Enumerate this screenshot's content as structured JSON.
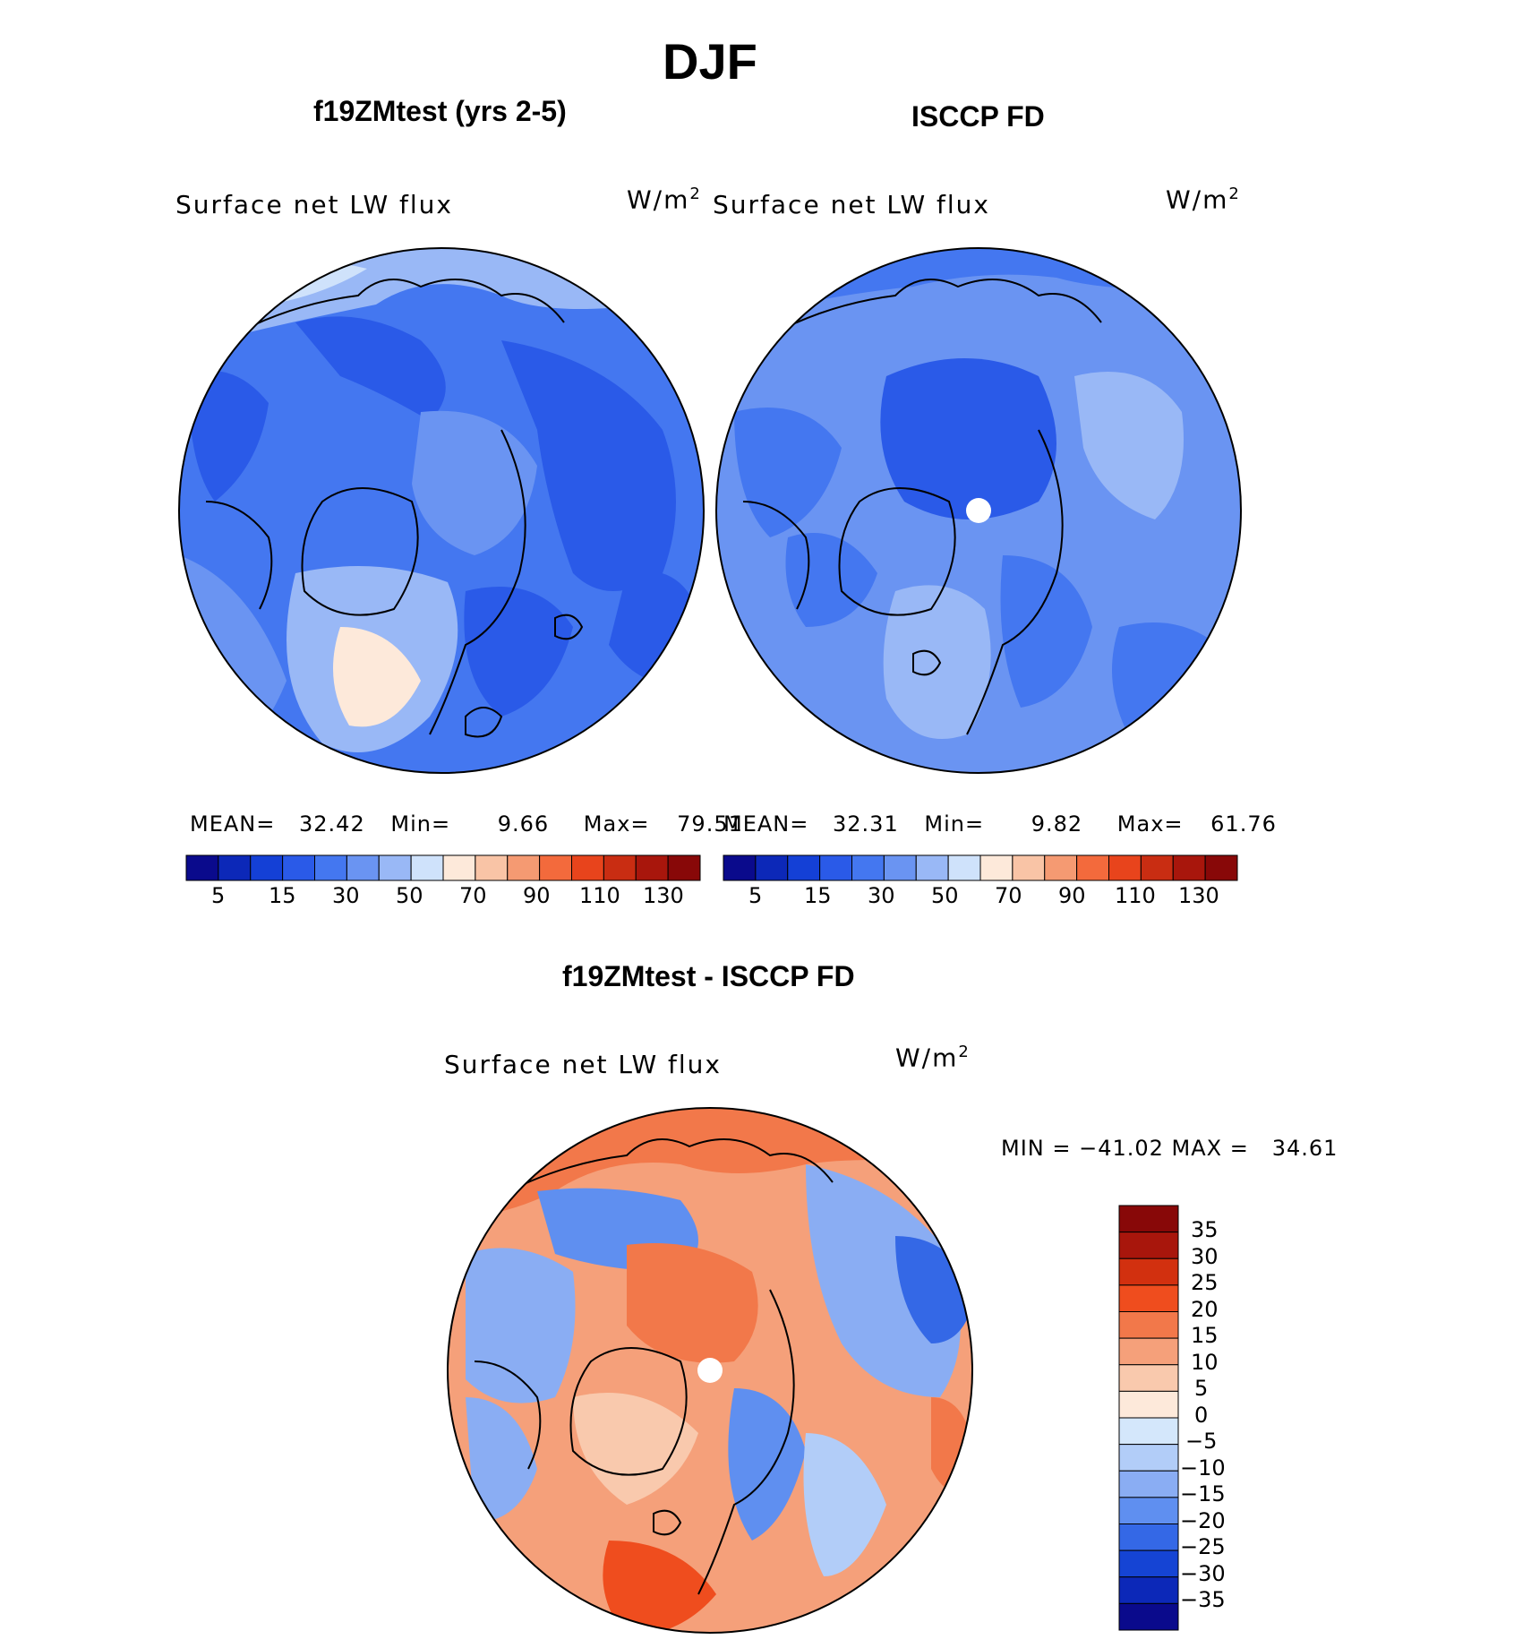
{
  "title": "DJF",
  "panels": [
    {
      "heading": "f19ZMtest (yrs 2-5)",
      "map_title": "Surface net LW flux",
      "units_base": "W/m",
      "units_exp": "2",
      "stats": {
        "mean_label": "MEAN=",
        "mean": "32.42",
        "min_label": "Min=",
        "min": "9.66",
        "max_label": "Max=",
        "max": "79.51"
      },
      "colorbar_ticks": [
        "5",
        "15",
        "30",
        "50",
        "70",
        "90",
        "110",
        "130"
      ],
      "colorbar_colors": [
        "#0a0a8c",
        "#0c28b8",
        "#1440d6",
        "#2a5ae8",
        "#4477f0",
        "#6a94f2",
        "#99b8f6",
        "#cfe2fb",
        "#fde9da",
        "#f9c4a6",
        "#f59a72",
        "#f36a3c",
        "#e8441c",
        "#c92d12",
        "#a8160c",
        "#880808"
      ]
    },
    {
      "heading": "ISCCP FD",
      "map_title": "Surface net LW flux",
      "units_base": "W/m",
      "units_exp": "2",
      "stats": {
        "mean_label": "MEAN=",
        "mean": "32.31",
        "min_label": "Min=",
        "min": "9.82",
        "max_label": "Max=",
        "max": "61.76"
      },
      "colorbar_ticks": [
        "5",
        "15",
        "30",
        "50",
        "70",
        "90",
        "110",
        "130"
      ],
      "colorbar_colors": [
        "#0a0a8c",
        "#0c28b8",
        "#1440d6",
        "#2a5ae8",
        "#4477f0",
        "#6a94f2",
        "#99b8f6",
        "#cfe2fb",
        "#fde9da",
        "#f9c4a6",
        "#f59a72",
        "#f36a3c",
        "#e8441c",
        "#c92d12",
        "#a8160c",
        "#880808"
      ]
    }
  ],
  "diff_panel": {
    "heading": "f19ZMtest - ISCCP FD",
    "map_title": "Surface net LW flux",
    "units_base": "W/m",
    "units_exp": "2",
    "minmax": "MIN = −41.02 MAX =   34.61",
    "colorbar_ticks": [
      "35",
      "30",
      "25",
      "20",
      "15",
      "10",
      "5",
      "0",
      "−5",
      "−10",
      "−15",
      "−20",
      "−25",
      "−30",
      "−35"
    ],
    "colorbar_colors": [
      "#880808",
      "#a8160c",
      "#d2300f",
      "#ef4d1e",
      "#f2784a",
      "#f5a07a",
      "#f9c9ad",
      "#fde9da",
      "#d4e7fb",
      "#b2cdf8",
      "#8aadf3",
      "#5f8ff0",
      "#3468e6",
      "#1544d4",
      "#0c28b8",
      "#0a0a8c"
    ]
  },
  "colors": {
    "ocean_blue": "#4477f0",
    "deep_blue": "#2a5ae8",
    "light_blue": "#99b8f6",
    "warm": "#f59a72"
  }
}
